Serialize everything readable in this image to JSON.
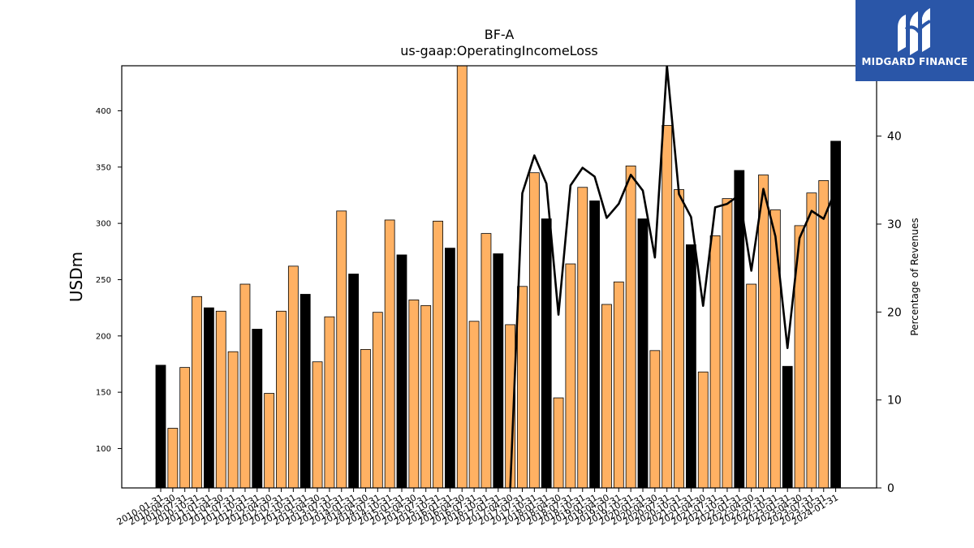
{
  "brand": {
    "name": "MIDGARD FINANCE",
    "icon": "midgard-logo-icon",
    "color": "#2a56a8"
  },
  "chart_data": {
    "type": "bar",
    "title": "BF-A",
    "subtitle": "us-gaap:OperatingIncomeLoss",
    "xlabel": "",
    "ylabel": "USDm",
    "y2label": "Percentage of Revenues",
    "ylim": [
      65,
      440
    ],
    "y2lim": [
      0,
      48
    ],
    "yticks": [
      100,
      150,
      200,
      250,
      300,
      350,
      400
    ],
    "y2ticks": [
      0,
      10,
      20,
      30,
      40
    ],
    "grid": false,
    "legend": "none",
    "colors": {
      "quarter": "#ffb163",
      "fiscal_year_end": "#000000",
      "line": "#000000"
    },
    "categories": [
      "2010-01-31",
      "2010-04-30",
      "2010-07-31",
      "2010-10-31",
      "2011-01-31",
      "2011-04-30",
      "2011-07-31",
      "2011-10-31",
      "2012-01-31",
      "2012-04-30",
      "2012-07-31",
      "2012-10-31",
      "2013-01-31",
      "2013-04-30",
      "2013-07-31",
      "2013-10-31",
      "2014-01-31",
      "2014-04-30",
      "2014-07-31",
      "2014-10-31",
      "2015-01-31",
      "2015-04-30",
      "2015-07-31",
      "2015-10-31",
      "2016-01-31",
      "2016-04-30",
      "2016-07-31",
      "2016-10-31",
      "2017-01-31",
      "2017-04-30",
      "2017-07-31",
      "2017-10-31",
      "2018-01-31",
      "2018-04-30",
      "2018-07-31",
      "2018-10-31",
      "2019-01-31",
      "2019-04-30",
      "2019-07-31",
      "2019-10-31",
      "2020-01-31",
      "2020-04-30",
      "2020-07-31",
      "2020-10-31",
      "2021-01-31",
      "2021-04-30",
      "2021-07-31",
      "2021-10-31",
      "2022-01-31",
      "2022-04-30",
      "2022-07-31",
      "2022-10-31",
      "2023-01-31",
      "2023-04-30",
      "2023-07-31",
      "2023-10-31",
      "2024-01-31"
    ],
    "series": [
      {
        "kind": "bar",
        "values": [
          174,
          118,
          172,
          235,
          225,
          222,
          186,
          246,
          206,
          149,
          222,
          262,
          237,
          177,
          217,
          311,
          255,
          188,
          221,
          303,
          272,
          232,
          227,
          302,
          278,
          440,
          213,
          291,
          273,
          210,
          244,
          345,
          304,
          145,
          264,
          332,
          320,
          228,
          248,
          351,
          304,
          187,
          387,
          330,
          281,
          168,
          289,
          322,
          347,
          246,
          343,
          312,
          173,
          298,
          327,
          338,
          373
        ],
        "highlight": [
          true,
          false,
          false,
          false,
          true,
          false,
          false,
          false,
          true,
          false,
          false,
          false,
          true,
          false,
          false,
          false,
          true,
          false,
          false,
          false,
          true,
          false,
          false,
          false,
          true,
          false,
          false,
          false,
          true,
          false,
          false,
          false,
          true,
          false,
          false,
          false,
          true,
          false,
          false,
          false,
          true,
          false,
          false,
          false,
          true,
          false,
          false,
          false,
          true,
          false,
          false,
          false,
          true,
          false,
          false,
          false,
          true
        ]
      },
      {
        "kind": "line",
        "axis": "right",
        "values": [
          null,
          null,
          null,
          null,
          null,
          null,
          null,
          null,
          null,
          null,
          null,
          null,
          null,
          null,
          null,
          null,
          null,
          null,
          null,
          null,
          null,
          null,
          null,
          null,
          null,
          null,
          null,
          null,
          null,
          0,
          33.5,
          37.8,
          34.6,
          19.7,
          34.4,
          36.4,
          35.4,
          30.7,
          32.3,
          35.6,
          33.8,
          26.2,
          48,
          33.4,
          30.8,
          20.7,
          31.9,
          32.3,
          33.3,
          24.7,
          34,
          28.6,
          15.9,
          28.4,
          31.5,
          30.6,
          33.9
        ]
      }
    ]
  }
}
